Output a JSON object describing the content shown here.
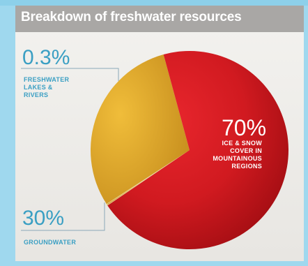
{
  "chart_data": {
    "type": "pie",
    "title": "Breakdown of freshwater resources",
    "slices": [
      {
        "label": "FRESHWATER LAKES & RIVERS",
        "value": 0.3,
        "value_label": "0.3%",
        "color": "#c9a14a"
      },
      {
        "label": "GROUNDWATER",
        "value": 30,
        "value_label": "30%",
        "color": "#d9a328"
      },
      {
        "label": "ICE & SNOW COVER IN MOUNTAINOUS REGIONS",
        "value": 70,
        "value_label": "70%",
        "color": "#c8151b"
      }
    ]
  },
  "labels": {
    "lakes_pct": "0.3%",
    "lakes_text_1": "FRESHWATER",
    "lakes_text_2": "LAKES &",
    "lakes_text_3": "RIVERS",
    "ground_pct": "30%",
    "ground_text": "GROUNDWATER",
    "ice_pct": "70%",
    "ice_text_1": "ICE & SNOW",
    "ice_text_2": "COVER IN",
    "ice_text_3": "MOUNTAINOUS",
    "ice_text_4": "REGIONS"
  },
  "colors": {
    "label_blue": "#3a9fc3",
    "title_bar": "#a9a7a5",
    "red_light": "#e0232a",
    "red_dark": "#a80f14",
    "gold_light": "#e3ad2f",
    "gold_dark": "#c48d1f",
    "leader_line": "#8aa8b8"
  }
}
